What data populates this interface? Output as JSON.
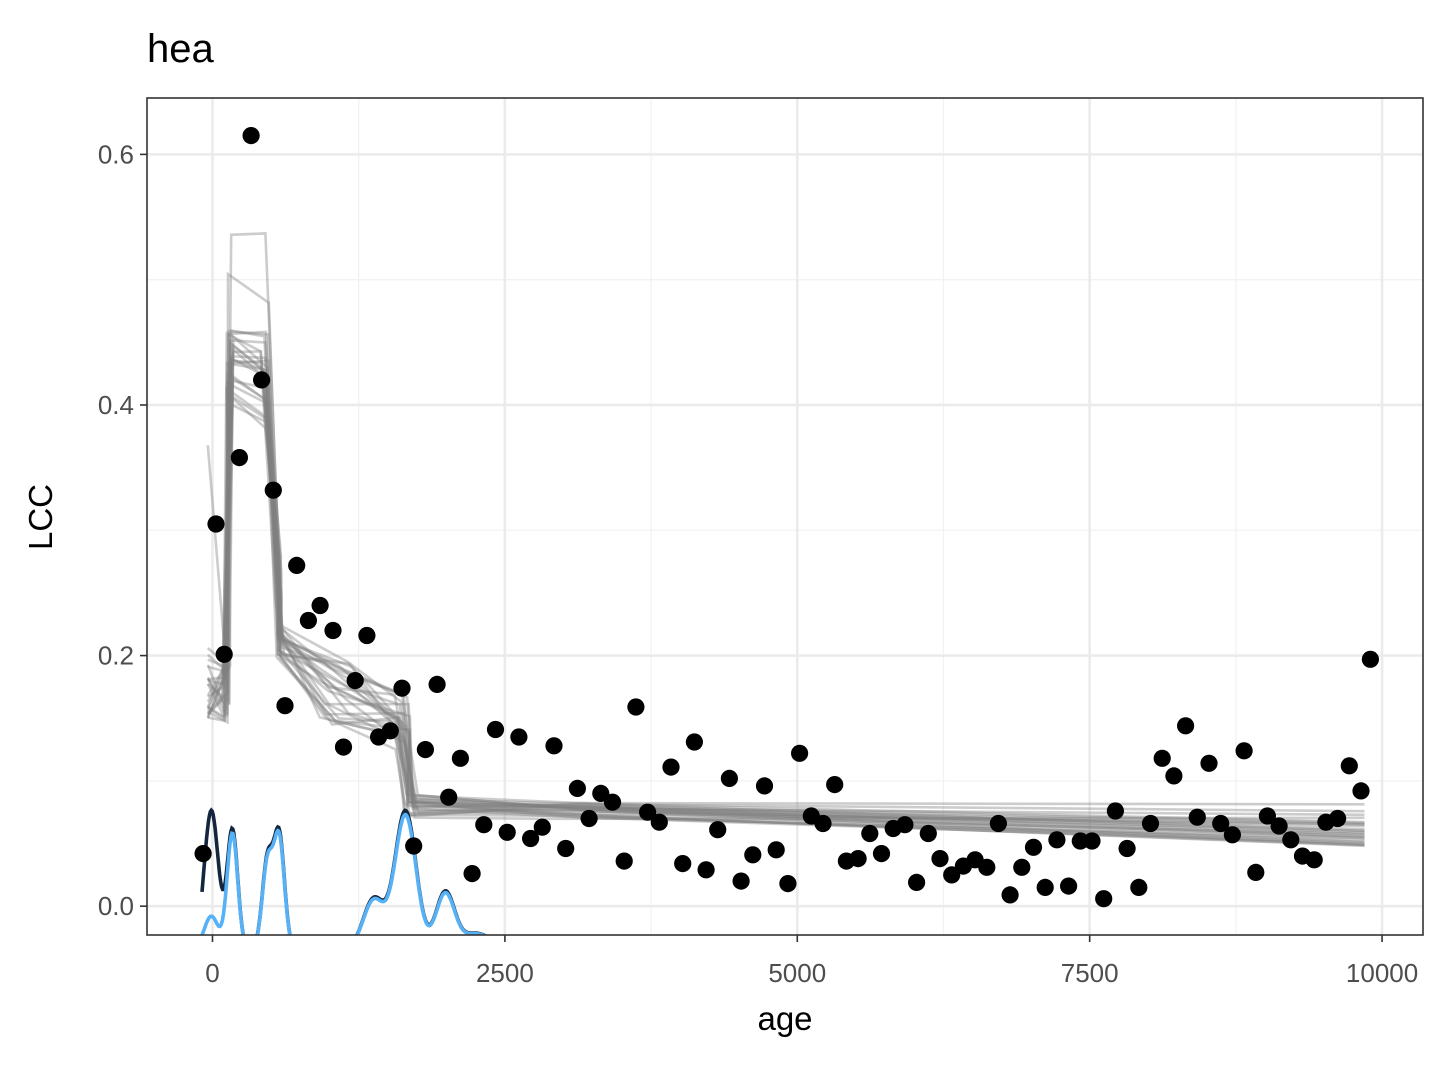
{
  "chart_data": {
    "type": "scatter",
    "title": "hea",
    "xlabel": "age",
    "ylabel": "LCC",
    "xlim": [
      -560,
      10350
    ],
    "ylim": [
      -0.023,
      0.645
    ],
    "x_ticks": [
      0,
      2500,
      5000,
      7500,
      10000
    ],
    "x_tick_labels": [
      "0",
      "2500",
      "5000",
      "7500",
      "10000"
    ],
    "y_ticks": [
      0.0,
      0.2,
      0.4,
      0.6
    ],
    "y_tick_labels": [
      "0.0",
      "0.2",
      "0.4",
      "0.6"
    ],
    "grid": true,
    "colors": {
      "points": "#000000",
      "model_lines": "#7f7f7f",
      "density_dark": "#13263d",
      "density_light": "#56b1f7"
    },
    "points": [
      [
        -80,
        0.042
      ],
      [
        30,
        0.305
      ],
      [
        100,
        0.201
      ],
      [
        230,
        0.358
      ],
      [
        330,
        0.615
      ],
      [
        420,
        0.42
      ],
      [
        520,
        0.332
      ],
      [
        620,
        0.16
      ],
      [
        720,
        0.272
      ],
      [
        820,
        0.228
      ],
      [
        920,
        0.24
      ],
      [
        1030,
        0.22
      ],
      [
        1120,
        0.127
      ],
      [
        1220,
        0.18
      ],
      [
        1320,
        0.216
      ],
      [
        1420,
        0.135
      ],
      [
        1520,
        0.14
      ],
      [
        1620,
        0.174
      ],
      [
        1720,
        0.048
      ],
      [
        1820,
        0.125
      ],
      [
        1920,
        0.177
      ],
      [
        2020,
        0.087
      ],
      [
        2120,
        0.118
      ],
      [
        2220,
        0.026
      ],
      [
        2320,
        0.065
      ],
      [
        2420,
        0.141
      ],
      [
        2520,
        0.059
      ],
      [
        2620,
        0.135
      ],
      [
        2720,
        0.054
      ],
      [
        2820,
        0.063
      ],
      [
        2920,
        0.128
      ],
      [
        3020,
        0.046
      ],
      [
        3120,
        0.094
      ],
      [
        3220,
        0.07
      ],
      [
        3320,
        0.09
      ],
      [
        3420,
        0.083
      ],
      [
        3520,
        0.036
      ],
      [
        3620,
        0.159
      ],
      [
        3720,
        0.075
      ],
      [
        3820,
        0.067
      ],
      [
        3920,
        0.111
      ],
      [
        4020,
        0.034
      ],
      [
        4120,
        0.131
      ],
      [
        4220,
        0.029
      ],
      [
        4320,
        0.061
      ],
      [
        4420,
        0.102
      ],
      [
        4520,
        0.02
      ],
      [
        4620,
        0.041
      ],
      [
        4720,
        0.096
      ],
      [
        4820,
        0.045
      ],
      [
        4920,
        0.018
      ],
      [
        5020,
        0.122
      ],
      [
        5120,
        0.072
      ],
      [
        5220,
        0.066
      ],
      [
        5320,
        0.097
      ],
      [
        5420,
        0.036
      ],
      [
        5520,
        0.038
      ],
      [
        5620,
        0.058
      ],
      [
        5720,
        0.042
      ],
      [
        5820,
        0.062
      ],
      [
        5920,
        0.065
      ],
      [
        6020,
        0.019
      ],
      [
        6120,
        0.058
      ],
      [
        6220,
        0.038
      ],
      [
        6320,
        0.025
      ],
      [
        6420,
        0.032
      ],
      [
        6520,
        0.037
      ],
      [
        6620,
        0.031
      ],
      [
        6720,
        0.066
      ],
      [
        6820,
        0.009
      ],
      [
        6920,
        0.031
      ],
      [
        7020,
        0.047
      ],
      [
        7120,
        0.015
      ],
      [
        7220,
        0.053
      ],
      [
        7320,
        0.016
      ],
      [
        7420,
        0.052
      ],
      [
        7520,
        0.052
      ],
      [
        7620,
        0.006
      ],
      [
        7720,
        0.076
      ],
      [
        7820,
        0.046
      ],
      [
        7920,
        0.015
      ],
      [
        8020,
        0.066
      ],
      [
        8120,
        0.118
      ],
      [
        8220,
        0.104
      ],
      [
        8320,
        0.144
      ],
      [
        8420,
        0.071
      ],
      [
        8520,
        0.114
      ],
      [
        8620,
        0.066
      ],
      [
        8720,
        0.057
      ],
      [
        8820,
        0.124
      ],
      [
        8920,
        0.027
      ],
      [
        9020,
        0.072
      ],
      [
        9120,
        0.064
      ],
      [
        9220,
        0.053
      ],
      [
        9320,
        0.04
      ],
      [
        9420,
        0.037
      ],
      [
        9520,
        0.067
      ],
      [
        9620,
        0.07
      ],
      [
        9720,
        0.112
      ],
      [
        9820,
        0.092
      ],
      [
        9900,
        0.197
      ]
    ]
  }
}
